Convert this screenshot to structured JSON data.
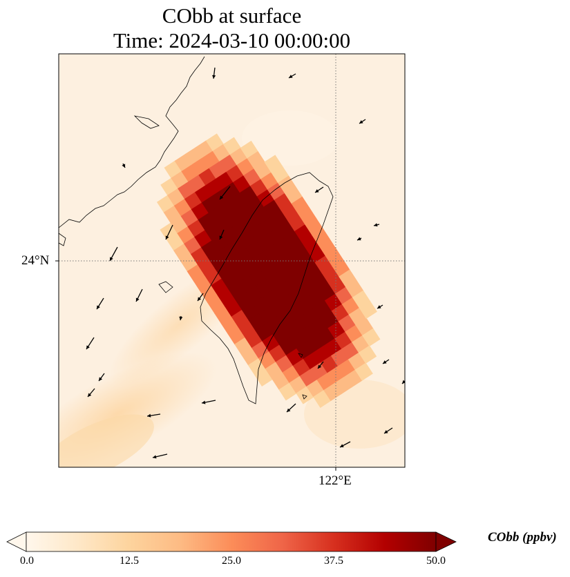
{
  "title": {
    "line1": "CObb at surface",
    "line2": "Time: 2024-03-10 00:00:00"
  },
  "map": {
    "lat_label": "24°N",
    "lon_label": "122°E",
    "gridline_style": "dotted"
  },
  "colorbar": {
    "label": "CObb (ppbv)",
    "min": 0.0,
    "max": 50.0,
    "ticks": [
      "0.0",
      "12.5",
      "25.0",
      "37.5",
      "50.0"
    ],
    "colormap": "OrRd",
    "extend": "both",
    "colors": [
      "#fff7ec",
      "#fee8c8",
      "#fdd49e",
      "#fdbb84",
      "#fc8d59",
      "#ef6548",
      "#d7301f",
      "#b30000",
      "#7f0000"
    ]
  }
}
